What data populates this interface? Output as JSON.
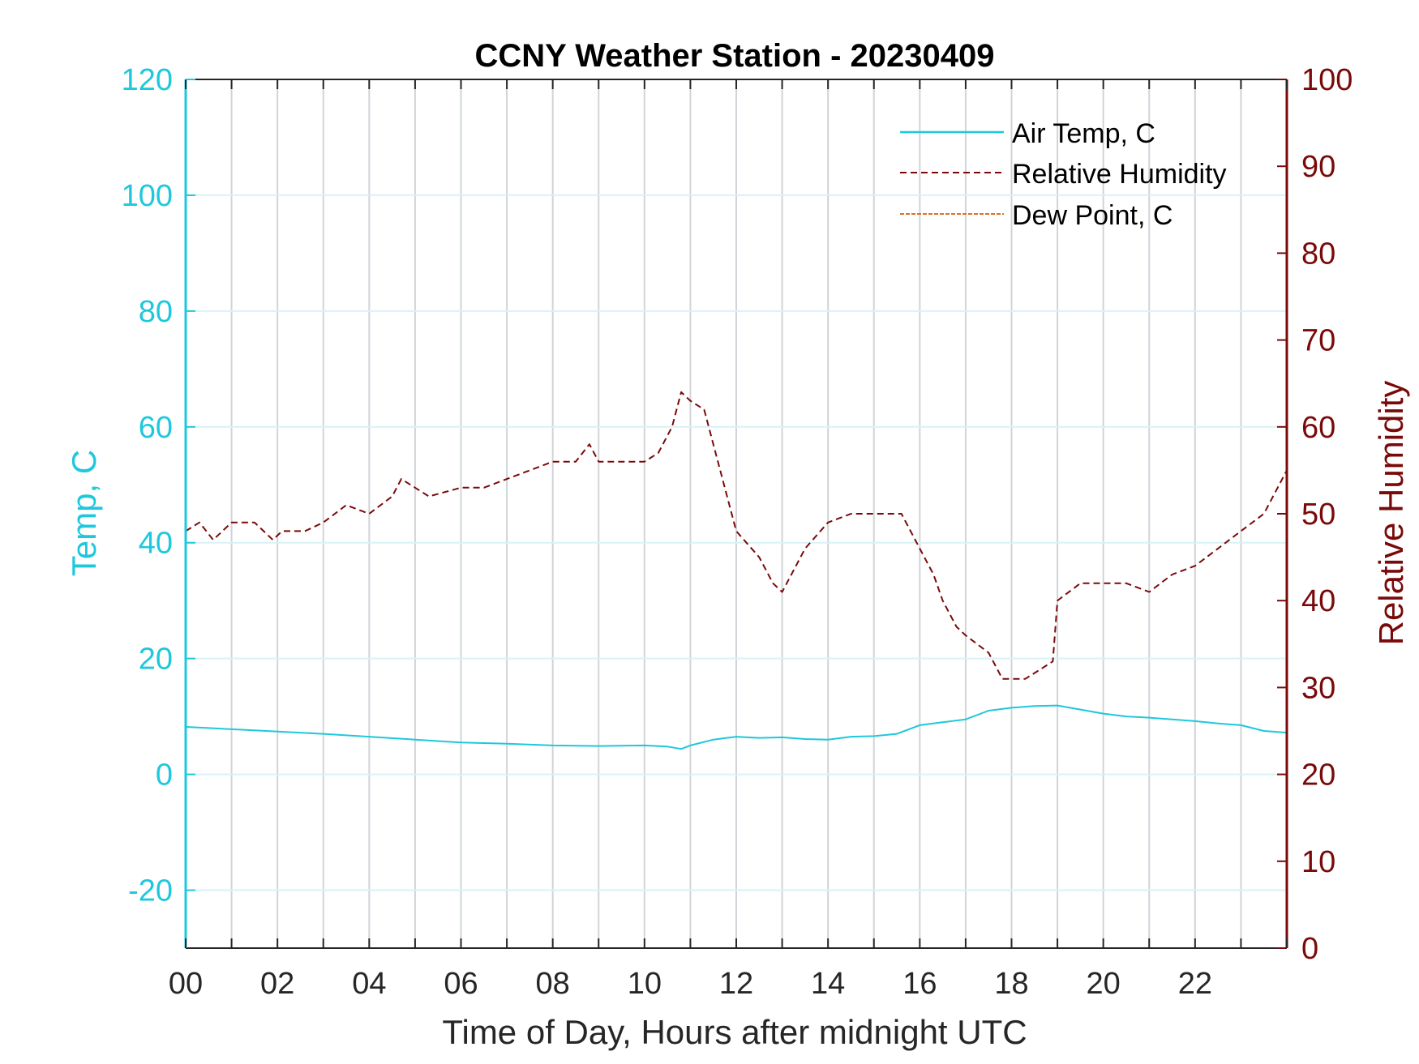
{
  "chart_data": {
    "type": "line",
    "title": "CCNY Weather Station - 20230409",
    "xlabel": "Time of Day, Hours after midnight UTC",
    "ylabel_left": "Temp, C",
    "ylabel_right": "Relative Humidity",
    "xlim": [
      0,
      24
    ],
    "ylim_left": [
      -30,
      120
    ],
    "ylim_right": [
      0,
      100
    ],
    "x_ticks": [
      0,
      2,
      4,
      6,
      8,
      10,
      12,
      14,
      16,
      18,
      20,
      22
    ],
    "x_tick_labels": [
      "00",
      "02",
      "04",
      "06",
      "08",
      "10",
      "12",
      "14",
      "16",
      "18",
      "20",
      "22"
    ],
    "y_left_ticks": [
      -20,
      0,
      20,
      40,
      60,
      80,
      100,
      120
    ],
    "y_left_tick_labels": [
      "-20",
      "0",
      "20",
      "40",
      "60",
      "80",
      "100",
      "120"
    ],
    "y_right_ticks": [
      0,
      10,
      20,
      30,
      40,
      50,
      60,
      70,
      80,
      90,
      100
    ],
    "y_right_tick_labels": [
      "0",
      "10",
      "20",
      "30",
      "40",
      "50",
      "60",
      "70",
      "80",
      "90",
      "100"
    ],
    "grid": true,
    "legend_position": "top-right",
    "colors": {
      "air_temp": "#1ec8dc",
      "relative_humidity": "#7a0a0a",
      "dew_point": "#e07020",
      "left_axis": "#1ec8dc",
      "right_axis": "#7a0a0a",
      "vertical_grid": "#d0d4d8",
      "horizontal_grid": "#d8f2f6"
    },
    "series": [
      {
        "name": "Air Temp, C",
        "axis": "left",
        "style": "solid",
        "x": [
          0,
          0.5,
          1,
          1.5,
          2,
          3,
          4,
          5,
          6,
          7,
          8,
          9,
          10,
          10.5,
          10.8,
          11,
          11.5,
          12,
          12.5,
          13,
          13.5,
          14,
          14.5,
          15,
          15.5,
          16,
          16.5,
          17,
          17.5,
          18,
          18.5,
          19,
          19.5,
          20,
          20.5,
          21,
          21.5,
          22,
          22.5,
          23,
          23.5,
          24
        ],
        "values": [
          8.2,
          8.0,
          7.8,
          7.6,
          7.4,
          7.0,
          6.5,
          6.0,
          5.5,
          5.3,
          5.0,
          4.9,
          5.0,
          4.8,
          4.4,
          5.0,
          6.0,
          6.5,
          6.3,
          6.4,
          6.1,
          6.0,
          6.5,
          6.6,
          7.0,
          8.5,
          9.0,
          9.5,
          11.0,
          11.5,
          11.8,
          11.9,
          11.2,
          10.5,
          10.0,
          9.8,
          9.5,
          9.2,
          8.8,
          8.5,
          7.5,
          7.2
        ]
      },
      {
        "name": "Relative Humidity",
        "axis": "right",
        "style": "dashed",
        "x": [
          0,
          0.3,
          0.6,
          1,
          1.5,
          1.9,
          2.1,
          2.6,
          3,
          3.5,
          4,
          4.5,
          4.7,
          5,
          5.3,
          6,
          6.5,
          7,
          7.5,
          8,
          8.5,
          8.8,
          9,
          9.5,
          10,
          10.3,
          10.6,
          10.8,
          11,
          11.3,
          11.5,
          11.8,
          12,
          12.5,
          12.8,
          13,
          13.3,
          13.5,
          14,
          14.5,
          15,
          15.3,
          15.6,
          16,
          16.3,
          16.5,
          16.8,
          17,
          17.5,
          17.8,
          18,
          18.3,
          18.6,
          18.9,
          19,
          19.5,
          20,
          20.5,
          21,
          21.5,
          22,
          22.5,
          23,
          23.5,
          23.8,
          24
        ],
        "values": [
          48,
          49,
          47,
          49,
          49,
          47,
          48,
          48,
          49,
          51,
          50,
          52,
          54,
          53,
          52,
          53,
          53,
          54,
          55,
          56,
          56,
          58,
          56,
          56,
          56,
          57,
          60,
          64,
          63,
          62,
          58,
          52,
          48,
          45,
          42,
          41,
          44,
          46,
          49,
          50,
          50,
          50,
          50,
          46,
          43,
          40,
          37,
          36,
          34,
          31,
          31,
          31,
          32,
          33,
          40,
          42,
          42,
          42,
          41,
          43,
          44,
          46,
          48,
          50,
          53,
          55
        ]
      },
      {
        "name": "Dew Point, C",
        "axis": "left",
        "style": "dashdot",
        "x": [],
        "values": []
      }
    ]
  }
}
